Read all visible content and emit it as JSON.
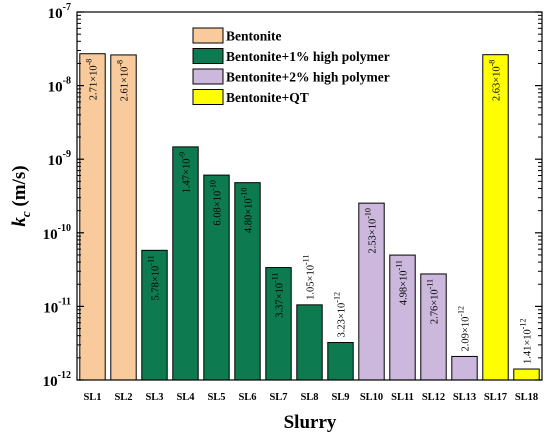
{
  "chart_data": {
    "type": "bar",
    "title": "",
    "xlabel": "Slurry",
    "ylabel_main": "k",
    "ylabel_sub": "c",
    "ylabel_unit": " (m/s)",
    "yscale": "log",
    "ylim": [
      1e-12,
      1e-07
    ],
    "ytick_labels": [
      {
        "base": "10",
        "exp": "-12"
      },
      {
        "base": "10",
        "exp": "-11"
      },
      {
        "base": "10",
        "exp": "-10"
      },
      {
        "base": "10",
        "exp": "-9"
      },
      {
        "base": "10",
        "exp": "-8"
      },
      {
        "base": "10",
        "exp": "-7"
      }
    ],
    "grid": false,
    "legend_position": "top-center",
    "series": [
      {
        "name": "Bentonite",
        "color": "#F9CB9C"
      },
      {
        "name": "Bentonite+1% high polymer",
        "color": "#0E7A4F"
      },
      {
        "name": "Bentonite+2% high polymer",
        "color": "#CBB8DC"
      },
      {
        "name": "Bentonite+QT",
        "color": "#FFFF00"
      }
    ],
    "bars": [
      {
        "category": "SL1",
        "value": 2.71e-08,
        "series": 0,
        "label_mant": "2.71×10",
        "label_exp": "-8"
      },
      {
        "category": "SL2",
        "value": 2.61e-08,
        "series": 0,
        "label_mant": "2.61×10",
        "label_exp": "-8"
      },
      {
        "category": "SL3",
        "value": 5.78e-11,
        "series": 1,
        "label_mant": "5.78×10",
        "label_exp": "-11"
      },
      {
        "category": "SL4",
        "value": 1.47e-09,
        "series": 1,
        "label_mant": "1.47×10",
        "label_exp": "-9"
      },
      {
        "category": "SL5",
        "value": 6.08e-10,
        "series": 1,
        "label_mant": "6.08×10",
        "label_exp": "-10"
      },
      {
        "category": "SL6",
        "value": 4.8e-10,
        "series": 1,
        "label_mant": "4.80×10",
        "label_exp": "-10"
      },
      {
        "category": "SL7",
        "value": 3.37e-11,
        "series": 1,
        "label_mant": "3.37×10",
        "label_exp": "-11"
      },
      {
        "category": "SL8",
        "value": 1.05e-11,
        "series": 1,
        "label_mant": "1.05×10",
        "label_exp": "-11"
      },
      {
        "category": "SL9",
        "value": 3.23e-12,
        "series": 1,
        "label_mant": "3.23×10",
        "label_exp": "-12"
      },
      {
        "category": "SL10",
        "value": 2.53e-10,
        "series": 2,
        "label_mant": "2.53×10",
        "label_exp": "-10"
      },
      {
        "category": "SL11",
        "value": 4.98e-11,
        "series": 2,
        "label_mant": "4.98×10",
        "label_exp": "-11"
      },
      {
        "category": "SL12",
        "value": 2.76e-11,
        "series": 2,
        "label_mant": "2.76×10",
        "label_exp": "-11"
      },
      {
        "category": "SL13",
        "value": 2.09e-12,
        "series": 2,
        "label_mant": "2.09×10",
        "label_exp": "-12"
      },
      {
        "category": "SL17",
        "value": 2.63e-08,
        "series": 3,
        "label_mant": "2.63×10",
        "label_exp": "-8"
      },
      {
        "category": "SL18",
        "value": 1.41e-12,
        "series": 3,
        "label_mant": "1.41×10",
        "label_exp": "-12"
      }
    ]
  }
}
